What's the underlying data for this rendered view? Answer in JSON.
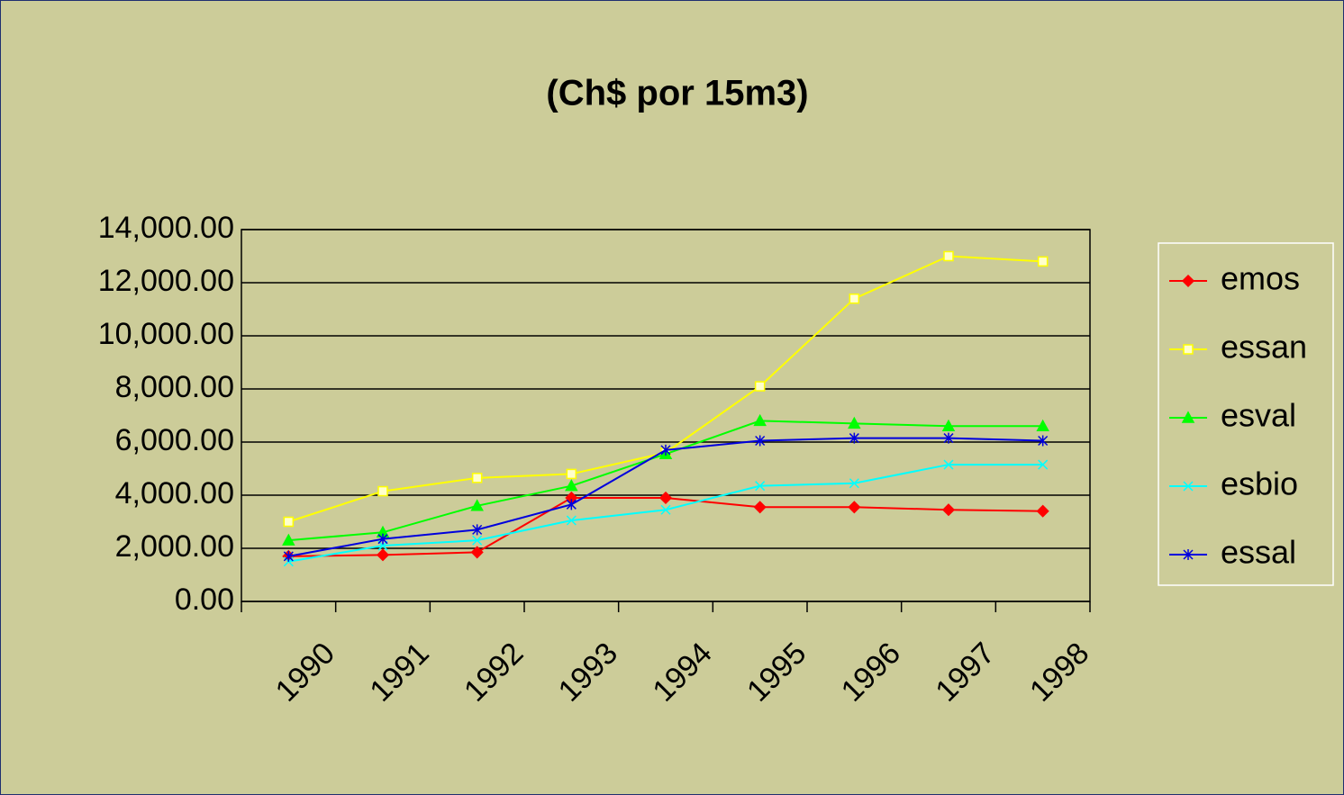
{
  "chart_data": {
    "type": "line",
    "title": "(Ch$ por 15m3)",
    "categories": [
      "1990",
      "1991",
      "1992",
      "1993",
      "1994",
      "1995",
      "1996",
      "1997",
      "1998"
    ],
    "series": [
      {
        "name": "emos",
        "color": "#ff0000",
        "marker": "diamond",
        "values": [
          1700,
          1750,
          1850,
          3900,
          3900,
          3550,
          3550,
          3450,
          3400
        ]
      },
      {
        "name": "essan",
        "color": "#ffff00",
        "marker": "square",
        "values": [
          3000,
          4150,
          4650,
          4800,
          5600,
          8100,
          11400,
          13000,
          12800
        ]
      },
      {
        "name": "esval",
        "color": "#00ff00",
        "marker": "triangle",
        "values": [
          2300,
          2600,
          3600,
          4350,
          5550,
          6800,
          6700,
          6600,
          6600
        ]
      },
      {
        "name": "esbio",
        "color": "#00ffff",
        "marker": "x",
        "values": [
          1500,
          2100,
          2300,
          3050,
          3450,
          4350,
          4450,
          5150,
          5150
        ]
      },
      {
        "name": "essal",
        "color": "#0000dd",
        "marker": "star",
        "values": [
          1700,
          2350,
          2700,
          3650,
          5700,
          6050,
          6150,
          6150,
          6050
        ]
      }
    ],
    "ylim": [
      0,
      14000
    ],
    "yticks": [
      {
        "value": 0,
        "label": "0.00"
      },
      {
        "value": 2000,
        "label": "2,000.00"
      },
      {
        "value": 4000,
        "label": "4,000.00"
      },
      {
        "value": 6000,
        "label": "6,000.00"
      },
      {
        "value": 8000,
        "label": "8,000.00"
      },
      {
        "value": 10000,
        "label": "10,000.00"
      },
      {
        "value": 12000,
        "label": "12,000.00"
      },
      {
        "value": 14000,
        "label": "14,000.00"
      }
    ],
    "grid": true,
    "legend": "right"
  }
}
